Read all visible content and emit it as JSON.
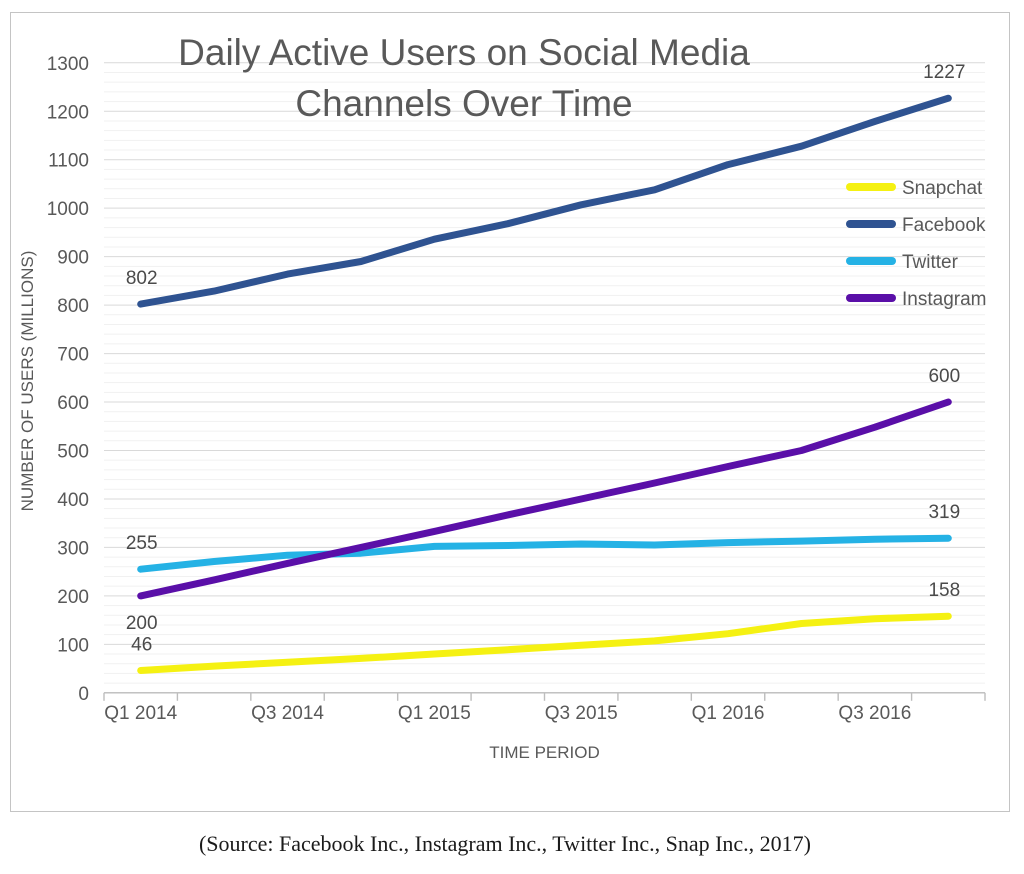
{
  "page": {
    "source_note": "(Source: Facebook Inc., Instagram Inc., Twitter Inc., Snap Inc., 2017)"
  },
  "chart_data": {
    "type": "line",
    "title": "Daily Active Users on Social Media Channels Over Time",
    "title_lines": [
      "Daily Active Users on Social Media",
      "Channels Over Time"
    ],
    "xlabel": "TIME PERIOD",
    "ylabel": "NUMBER OF USERS (MILLIONS)",
    "ylim": [
      0,
      1300
    ],
    "y_tick_step": 100,
    "y_minor_step": 20,
    "grid": true,
    "x_point_count": 12,
    "x_tick_labels": [
      {
        "index": 0,
        "text": "Q1 2014"
      },
      {
        "index": 2,
        "text": "Q3 2014"
      },
      {
        "index": 4,
        "text": "Q1 2015"
      },
      {
        "index": 6,
        "text": "Q3 2015"
      },
      {
        "index": 8,
        "text": "Q1 2016"
      },
      {
        "index": 10,
        "text": "Q3 2016"
      }
    ],
    "legend_position": "right-upper",
    "series": [
      {
        "name": "Snapchat",
        "color": "#f5f112",
        "values": [
          46,
          55,
          63,
          71,
          80,
          89,
          98,
          107,
          122,
          143,
          153,
          158
        ],
        "point_labels": [
          {
            "point": 0,
            "text": "46",
            "placement": "above"
          },
          {
            "point": 11,
            "text": "158",
            "placement": "above"
          }
        ]
      },
      {
        "name": "Facebook",
        "color": "#2f5391",
        "values": [
          802,
          829,
          864,
          890,
          936,
          968,
          1007,
          1038,
          1090,
          1128,
          1179,
          1227
        ],
        "point_labels": [
          {
            "point": 0,
            "text": "802",
            "placement": "above"
          },
          {
            "point": 11,
            "text": "1227",
            "placement": "above"
          }
        ]
      },
      {
        "name": "Twitter",
        "color": "#25b2e5",
        "values": [
          255,
          271,
          284,
          288,
          302,
          304,
          307,
          305,
          310,
          313,
          317,
          319
        ],
        "point_labels": [
          {
            "point": 0,
            "text": "255",
            "placement": "above"
          },
          {
            "point": 11,
            "text": "319",
            "placement": "above"
          }
        ]
      },
      {
        "name": "Instagram",
        "color": "#5a0fa8",
        "values": [
          200,
          233,
          267,
          300,
          333,
          367,
          400,
          433,
          467,
          500,
          548,
          600
        ],
        "point_labels": [
          {
            "point": 0,
            "text": "200",
            "placement": "below"
          },
          {
            "point": 11,
            "text": "600",
            "placement": "above"
          }
        ]
      }
    ],
    "style": {
      "title_color": "#595959",
      "tick_label_color": "#595959",
      "data_label_color": "#4a4a4a",
      "major_grid_color": "#d9d9d9",
      "minor_grid_color": "#f1f1f1",
      "axis_color": "#bdbdbd"
    }
  }
}
